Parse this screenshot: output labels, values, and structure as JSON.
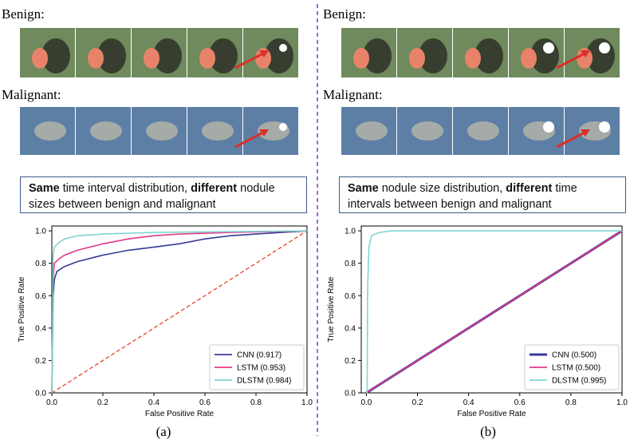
{
  "panels": [
    {
      "benign_label": "Benign:",
      "malignant_label": "Malignant:",
      "description": [
        {
          "text": "Same",
          "bold": true
        },
        {
          "text": " time interval distribution, ",
          "bold": false
        },
        {
          "text": "different",
          "bold": true
        },
        {
          "text": " nodule sizes between benign and malignant",
          "bold": false
        }
      ],
      "caption": "(a)"
    },
    {
      "benign_label": "Benign:",
      "malignant_label": "Malignant:",
      "description": [
        {
          "text": "Same",
          "bold": true
        },
        {
          "text": " nodule size distribution, ",
          "bold": false
        },
        {
          "text": "different",
          "bold": true
        },
        {
          "text": " time intervals between benign and malignant",
          "bold": false
        }
      ],
      "caption": "(b)"
    }
  ],
  "chart_data": [
    {
      "type": "line",
      "xlabel": "False Positive Rate",
      "ylabel": "True Positive Rate",
      "xlim": [
        0,
        1
      ],
      "ylim": [
        0,
        1.03
      ],
      "xticks": [
        {
          "value": 0,
          "label": "0.0"
        },
        0.2,
        0.4,
        0.6,
        0.8,
        {
          "value": 1,
          "label": "1.0"
        }
      ],
      "yticks": [
        {
          "value": 0,
          "label": "0.0"
        },
        0.2,
        0.4,
        0.6,
        0.8,
        {
          "value": 1,
          "label": "1.0"
        }
      ],
      "legend": "lower right",
      "reference_line": {
        "color": "#e8432a",
        "dashed": true,
        "x": [
          0,
          1
        ],
        "values": [
          0,
          1
        ]
      },
      "series": [
        {
          "name": "CNN (0.917)",
          "color": "#343b97",
          "x": [
            0,
            0.005,
            0.01,
            0.02,
            0.05,
            0.1,
            0.2,
            0.3,
            0.4,
            0.5,
            0.6,
            0.7,
            0.8,
            0.9,
            1
          ],
          "values": [
            0,
            0.6,
            0.7,
            0.75,
            0.78,
            0.81,
            0.85,
            0.88,
            0.9,
            0.92,
            0.95,
            0.97,
            0.98,
            0.99,
            1
          ]
        },
        {
          "name": "LSTM (0.953)",
          "color": "#e6378a",
          "x": [
            0,
            0.005,
            0.01,
            0.03,
            0.05,
            0.1,
            0.2,
            0.3,
            0.4,
            0.5,
            0.7,
            1
          ],
          "values": [
            0,
            0.7,
            0.8,
            0.83,
            0.85,
            0.88,
            0.92,
            0.95,
            0.97,
            0.98,
            0.99,
            1
          ]
        },
        {
          "name": "DLSTM (0.984)",
          "color": "#7fd6d0",
          "x": [
            0,
            0.005,
            0.01,
            0.03,
            0.05,
            0.1,
            0.2,
            0.4,
            1
          ],
          "values": [
            0,
            0.85,
            0.9,
            0.93,
            0.95,
            0.97,
            0.98,
            0.99,
            1
          ]
        }
      ]
    },
    {
      "type": "line",
      "xlabel": "False Positive Rate",
      "ylabel": "True Positive Rate",
      "xlim": [
        -0.02,
        1
      ],
      "ylim": [
        0,
        1.03
      ],
      "xticks": [
        {
          "value": 0,
          "label": "0.0"
        },
        0.2,
        0.4,
        0.6,
        0.8,
        {
          "value": 1,
          "label": "1.0"
        }
      ],
      "yticks": [
        {
          "value": 0,
          "label": "0.0"
        },
        0.2,
        0.4,
        0.6,
        0.8,
        {
          "value": 1,
          "label": "1.0"
        }
      ],
      "legend": "lower right",
      "series": [
        {
          "name": "CNN (0.500)",
          "color": "#343b97",
          "x": [
            0,
            1
          ],
          "values": [
            0,
            1
          ]
        },
        {
          "name": "LSTM (0.500)",
          "color": "#e6378a",
          "x": [
            0,
            1
          ],
          "values": [
            0,
            1
          ]
        },
        {
          "name": "DLSTM (0.995)",
          "color": "#7fd6d0",
          "x": [
            0,
            0.003,
            0.005,
            0.01,
            0.02,
            0.05,
            0.1,
            1
          ],
          "values": [
            0,
            0,
            0.65,
            0.9,
            0.97,
            0.99,
            1,
            1
          ]
        }
      ]
    }
  ]
}
